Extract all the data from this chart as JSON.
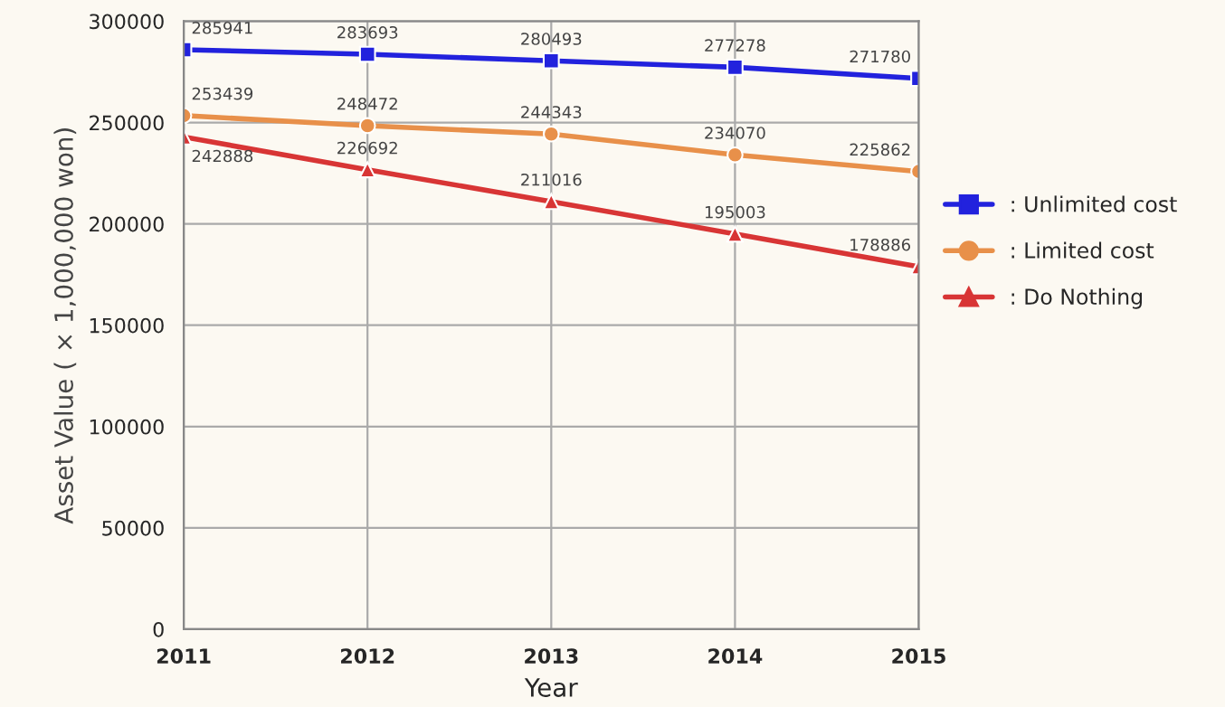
{
  "chart_data": {
    "type": "line",
    "xlabel": "Year",
    "ylabel": "Asset Value ( × 1,000,000 won)",
    "categories": [
      "2011",
      "2012",
      "2013",
      "2014",
      "2015"
    ],
    "series": [
      {
        "name": ": Unlimited cost",
        "color": "#2222dd",
        "marker": "square",
        "values": [
          285941,
          283693,
          280493,
          277278,
          271780
        ]
      },
      {
        "name": ": Limited cost",
        "color": "#e8904a",
        "marker": "circle",
        "values": [
          253439,
          248472,
          244343,
          234070,
          225862
        ]
      },
      {
        "name": ": Do Nothing",
        "color": "#d83535",
        "marker": "triangle",
        "values": [
          242888,
          226692,
          211016,
          195003,
          178886
        ]
      }
    ],
    "ylim": [
      0,
      300000
    ],
    "yticks": [
      0,
      50000,
      100000,
      150000,
      200000,
      250000,
      300000
    ],
    "grid": true,
    "legend": "right",
    "data_labels": true,
    "line_style": "solid"
  }
}
